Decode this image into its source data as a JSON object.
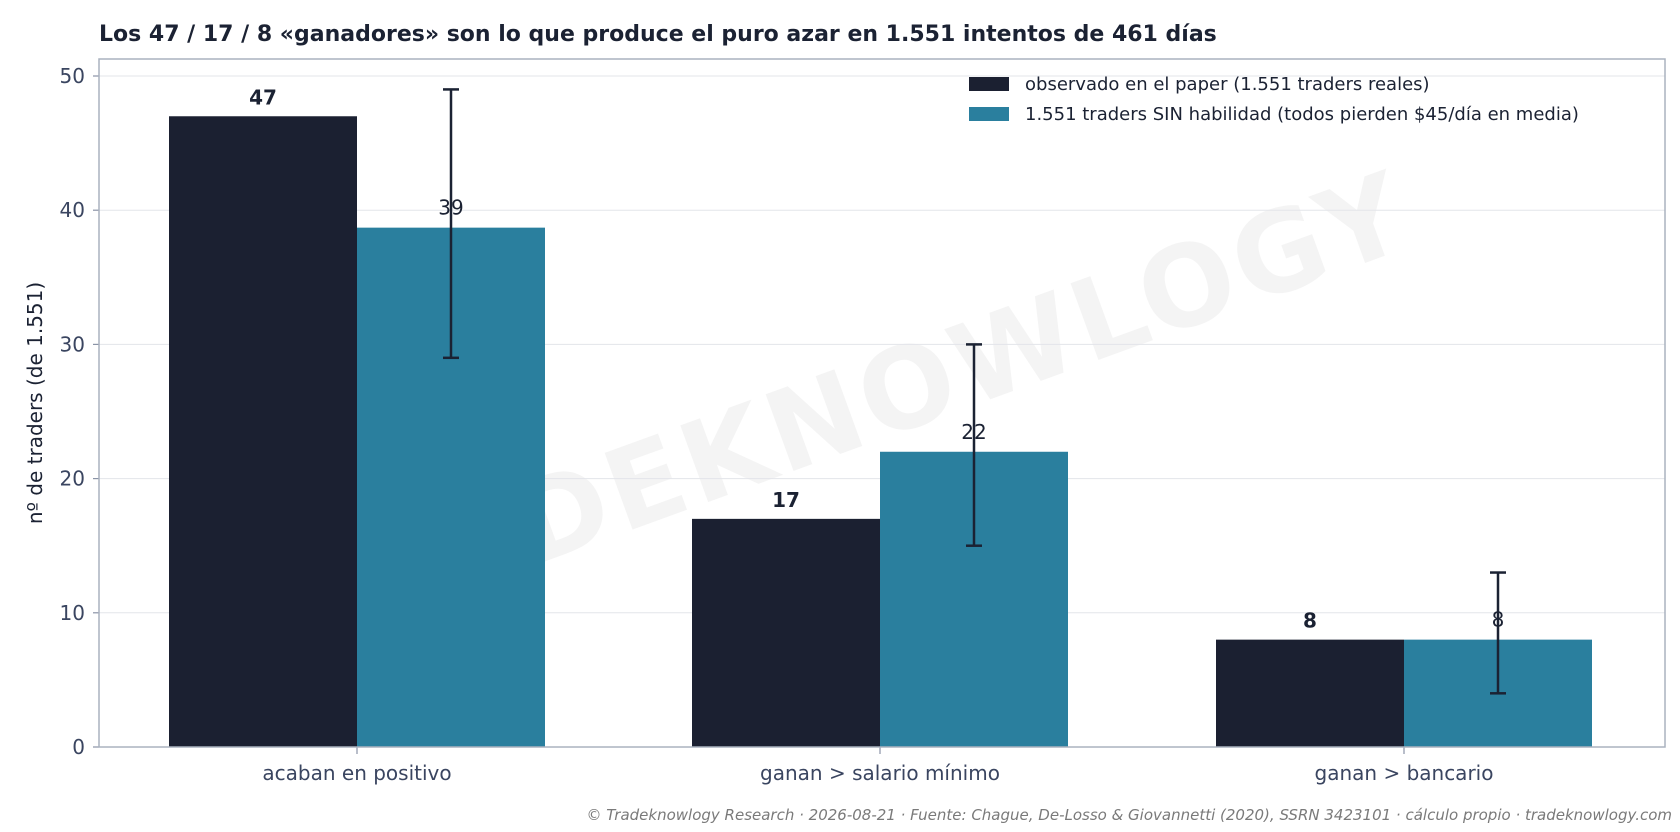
{
  "chart_data": {
    "type": "bar",
    "title": "Los 47 / 17 / 8 «ganadores» son lo que produce el puro azar en 1.551 intentos de 461 días",
    "xlabel": "",
    "ylabel": "nº de traders (de 1.551)",
    "ylim": [
      0,
      51
    ],
    "yticks": [
      "0",
      "10",
      "20",
      "30",
      "40",
      "50"
    ],
    "grid": true,
    "legend_position": "top-right",
    "categories": [
      "acaban en positivo",
      "ganan > salario mínimo",
      "ganan > bancario"
    ],
    "series": [
      {
        "name": "observado en el paper (1.551 traders reales)",
        "color": "#1b2031",
        "values": [
          47,
          17,
          8
        ],
        "labels": [
          "47",
          "17",
          "8"
        ]
      },
      {
        "name": "1.551 traders SIN habilidad (todos pierden $45/día en media)",
        "color": "#2a7f9e",
        "values": [
          38.7,
          22,
          8
        ],
        "labels": [
          "39",
          "22",
          "8"
        ],
        "error_low": [
          29,
          15,
          4
        ],
        "error_high": [
          49,
          30,
          13
        ]
      }
    ],
    "watermark": "TRADEKNOWLOGY"
  },
  "footer": "© Tradeknowlogy Research   ·   2026-08-21   ·   Fuente: Chague, De-Losso & Giovannetti (2020), SSRN 3423101 · cálculo propio   ·   tradeknowlogy.com"
}
